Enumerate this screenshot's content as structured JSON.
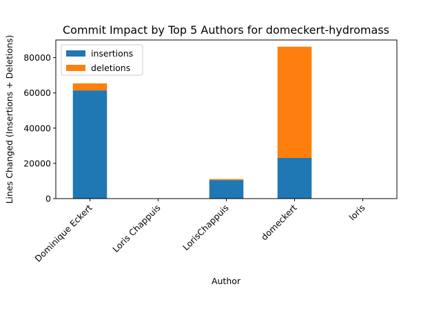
{
  "chart_data": {
    "type": "bar",
    "stacked": true,
    "title": "Commit Impact by Top 5 Authors for domeckert-hydromass",
    "xlabel": "Author",
    "ylabel": "Lines Changed (Insertions + Deletions)",
    "categories": [
      "Dominique Eckert",
      "Loris Chappuis",
      "LorisChappuis",
      "domeckert",
      "loris"
    ],
    "series": [
      {
        "name": "insertions",
        "color": "#1f77b4",
        "values": [
          61400,
          0,
          10500,
          23100,
          0
        ]
      },
      {
        "name": "deletions",
        "color": "#ff7f0e",
        "values": [
          4000,
          0,
          600,
          63100,
          0
        ]
      }
    ],
    "ylim": [
      0,
      90000
    ],
    "yticks": [
      0,
      20000,
      40000,
      60000,
      80000
    ],
    "ytick_labels": [
      "0",
      "20000",
      "40000",
      "60000",
      "80000"
    ],
    "legend_position": "upper-left",
    "grid": false
  }
}
